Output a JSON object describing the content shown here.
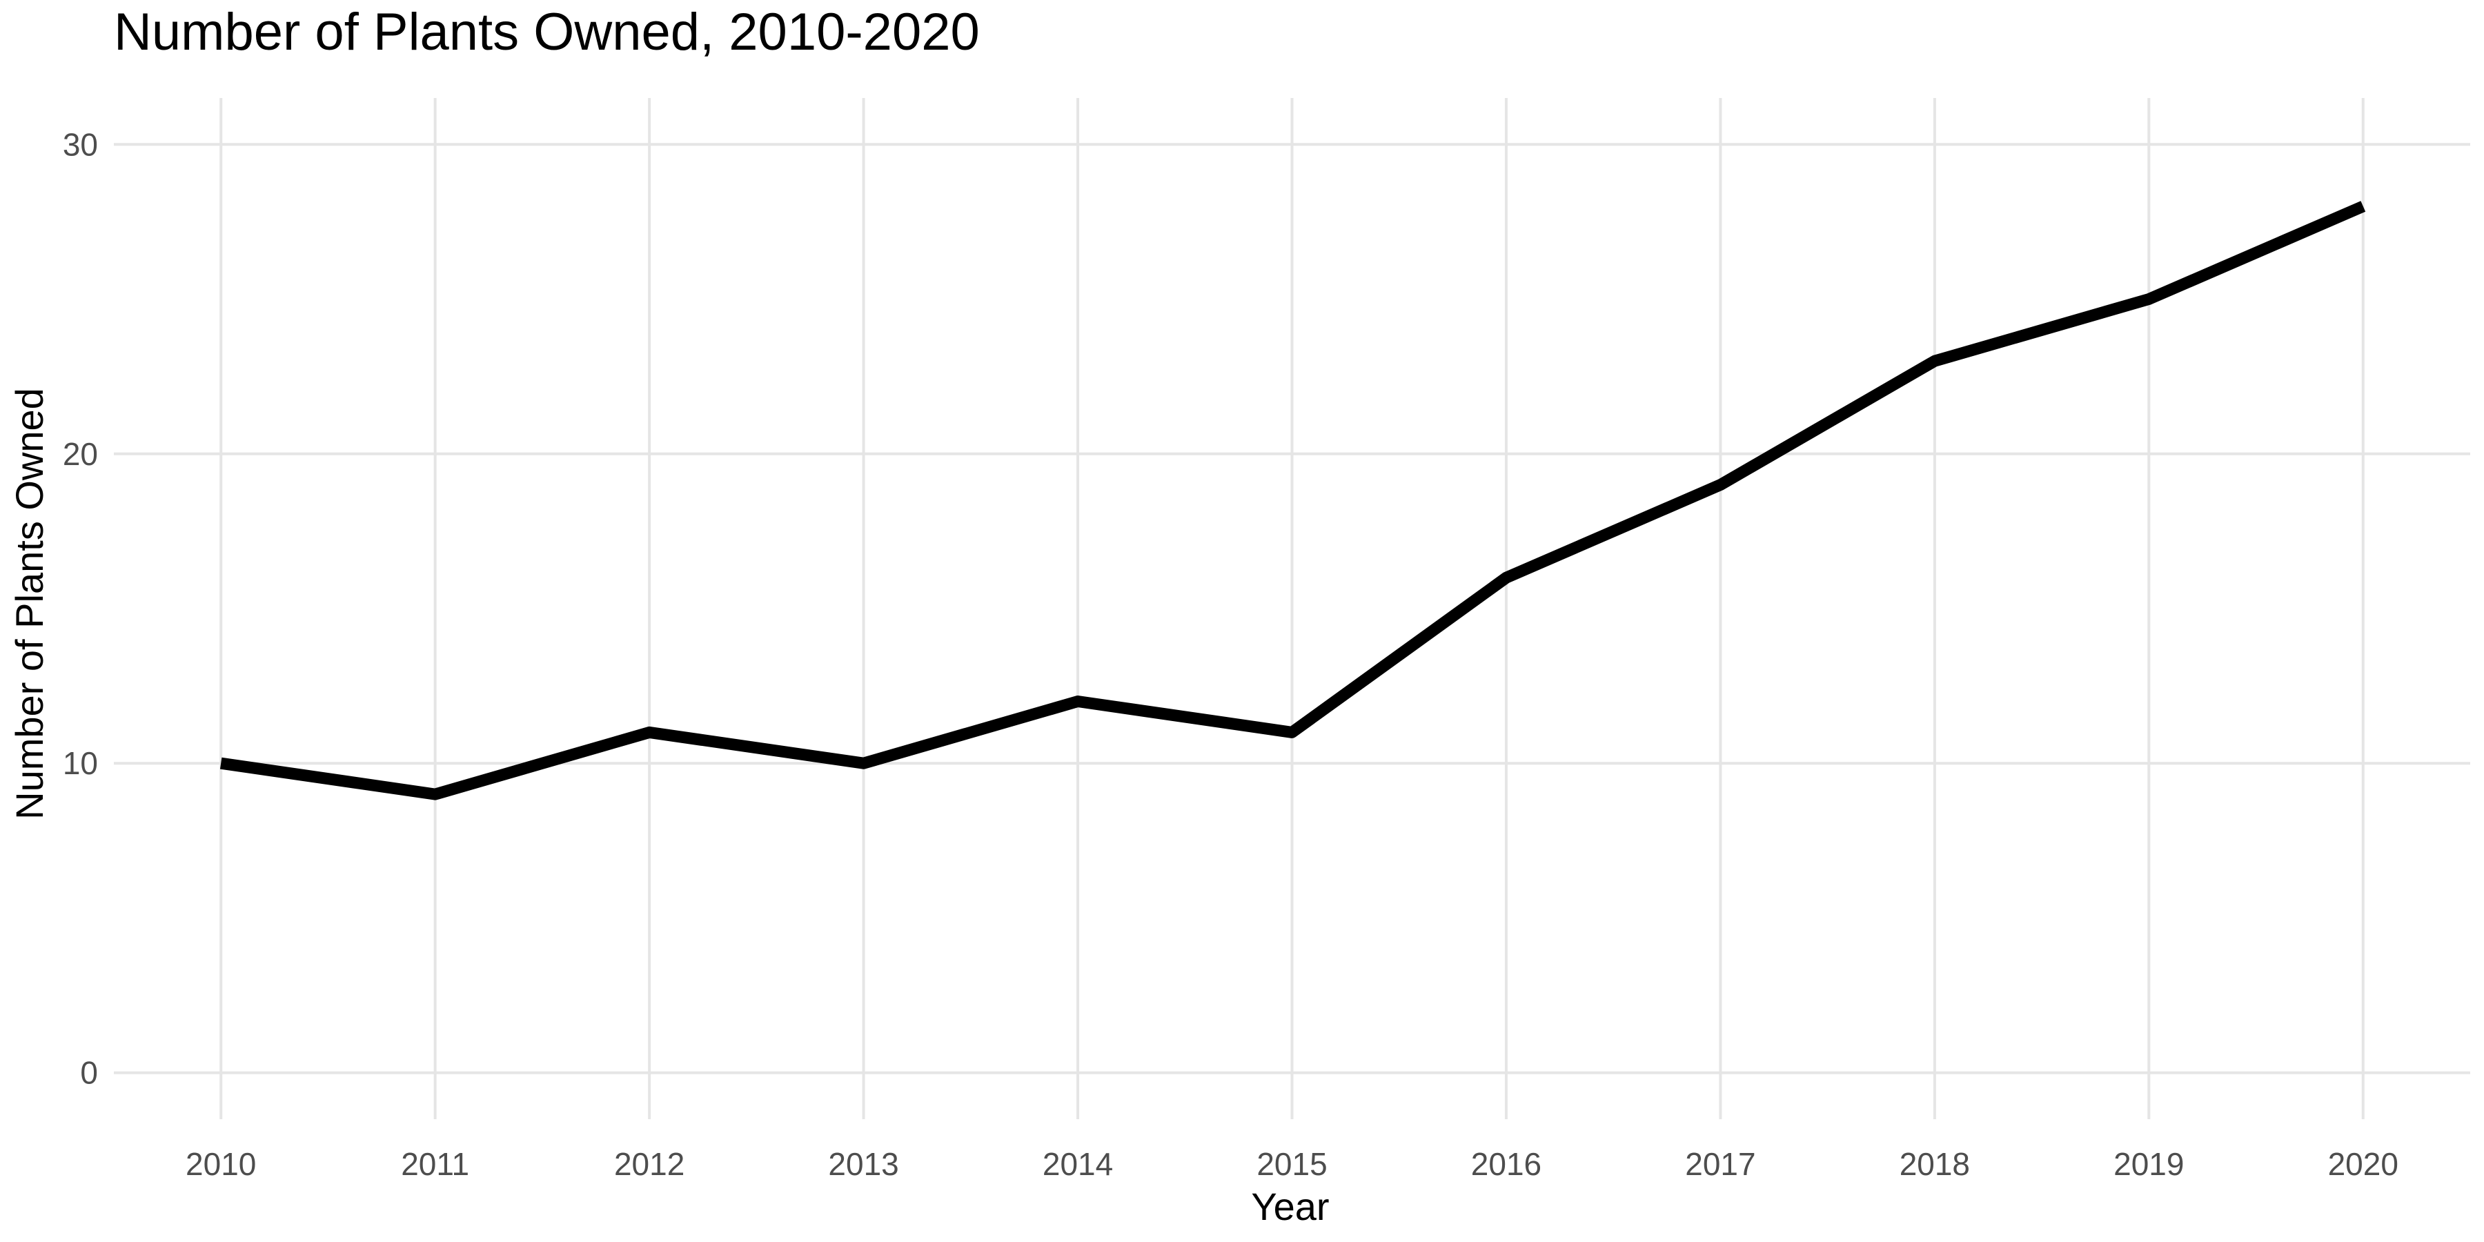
{
  "chart_data": {
    "type": "line",
    "title": "Number of Plants Owned, 2010-2020",
    "xlabel": "Year",
    "ylabel": "Number of Plants Owned",
    "x": [
      2010,
      2011,
      2012,
      2013,
      2014,
      2015,
      2016,
      2017,
      2018,
      2019,
      2020
    ],
    "xticks": [
      "2010",
      "2011",
      "2012",
      "2013",
      "2014",
      "2015",
      "2016",
      "2017",
      "2018",
      "2019",
      "2020"
    ],
    "yticks": [
      0,
      10,
      20,
      30
    ],
    "xlim": [
      2009.5,
      2020.5
    ],
    "ylim": [
      0,
      30
    ],
    "grid": true,
    "legend": "none",
    "series": [
      {
        "values": [
          10,
          9,
          11,
          10,
          12,
          11,
          16,
          19,
          23,
          25,
          28
        ],
        "color": "#000000"
      }
    ]
  }
}
